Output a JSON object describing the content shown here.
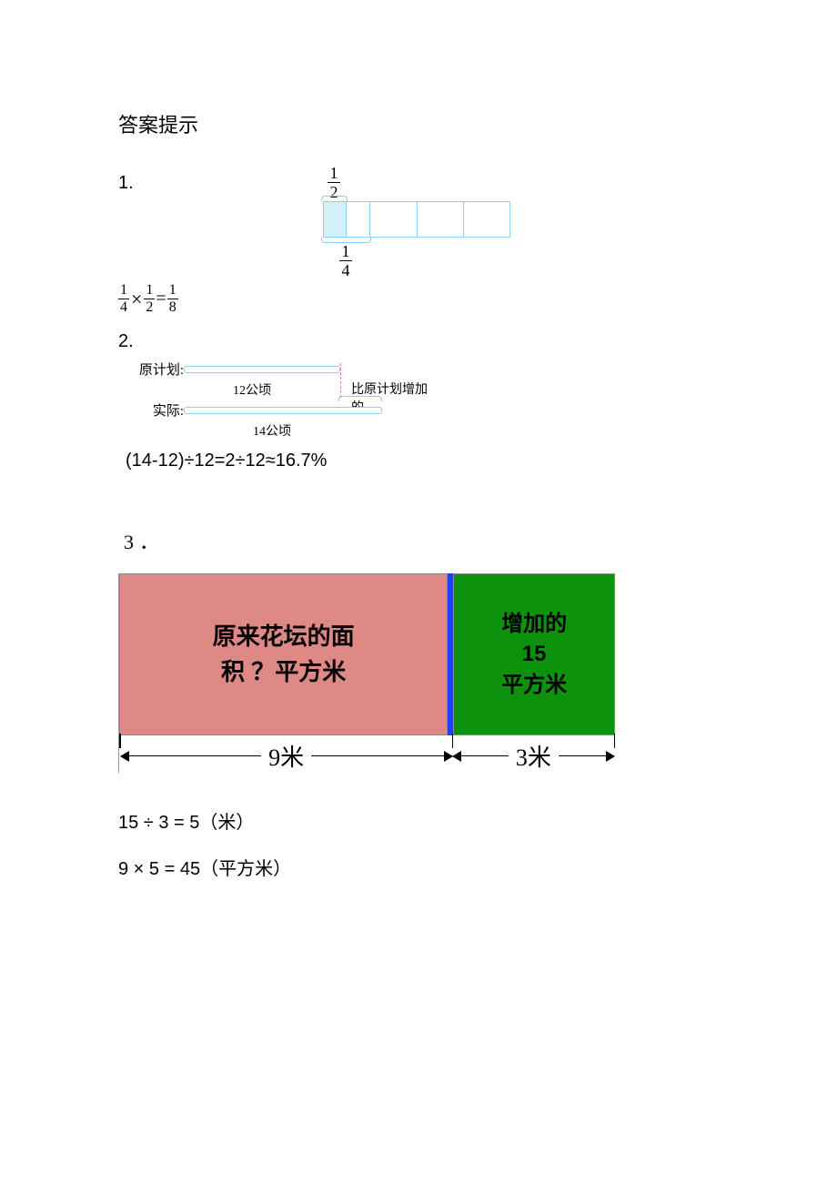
{
  "title": "答案提示",
  "q1": {
    "label": "1.",
    "top_frac": {
      "num": "1",
      "den": "2"
    },
    "bot_frac": {
      "num": "1",
      "den": "4"
    },
    "bar": {
      "cells": 4,
      "first_cell_shaded_half": true,
      "border_color": "#8ecff0",
      "shade_color": "#d3effa"
    },
    "equation": {
      "a": {
        "num": "1",
        "den": "4"
      },
      "op1": "×",
      "b": {
        "num": "1",
        "den": "2"
      },
      "eq": "=",
      "c": {
        "num": "1",
        "den": "8"
      }
    }
  },
  "q2": {
    "label": "2.",
    "plan_label": "原计划:",
    "actual_label": "实际:",
    "plan_len_label": "12公顷",
    "actual_len_label": "14公顷",
    "increase_label": "比原计划增加的",
    "bar_border_color": "#8ecff0",
    "dash_color": "#d97fa8",
    "equation": "(14-12)÷12=2÷12≈16.7%"
  },
  "q3": {
    "label": "3．",
    "left_box": {
      "line1": "原来花坛的面",
      "line2": "积 ？平方米",
      "bg": "#de8986"
    },
    "divider_color": "#1943ff",
    "right_box": {
      "line1": "增加的",
      "line2": "15",
      "line3": "平方米",
      "bg": "#0d920d"
    },
    "dim_left": "9米",
    "dim_right": "3米",
    "eq1": "15 ÷ 3 = 5（米）",
    "eq2": "9 × 5 = 45（平方米）"
  }
}
